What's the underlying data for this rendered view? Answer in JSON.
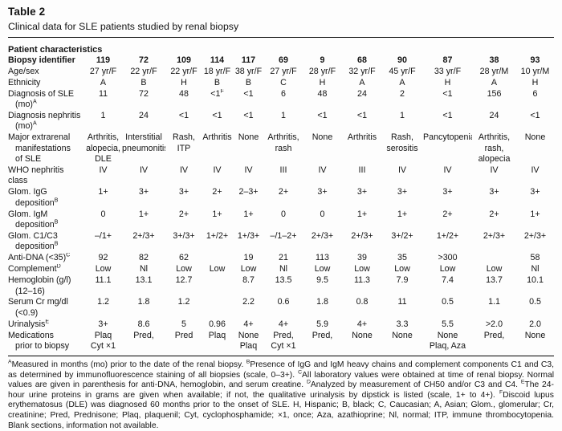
{
  "title": "Table 2",
  "subtitle": "Clinical data for SLE patients studied by renal biopsy",
  "table": {
    "section_header": "Patient characteristics",
    "id_row_label": "Biopsy identifier",
    "columns": [
      "119",
      "72",
      "109",
      "114",
      "117",
      "69",
      "9",
      "68",
      "90",
      "87",
      "38",
      "93"
    ],
    "rows": [
      {
        "label_lines": [
          "Age/sex"
        ],
        "values": [
          "27 yr/F",
          "22 yr/F",
          "22 yr/F",
          "18 yr/F",
          "38 yr/F",
          "27 yr/F",
          "28 yr/F",
          "32 yr/F",
          "45 yr/F",
          "33 yr/F",
          "28 yr/M",
          "10 yr/M"
        ]
      },
      {
        "label_lines": [
          "Ethnicity"
        ],
        "values": [
          "A",
          "B",
          "H",
          "B",
          "B",
          "C",
          "H",
          "A",
          "A",
          "H",
          "A",
          "H"
        ]
      },
      {
        "label_lines": [
          "Diagnosis of SLE",
          "(mo){A}"
        ],
        "values": [
          "11",
          "72",
          "48",
          "<1{F}",
          "<1",
          "6",
          "48",
          "24",
          "2",
          "<1",
          "156",
          "6"
        ]
      },
      {
        "label_lines": [
          "Diagnosis nephritis",
          "(mo){A}"
        ],
        "values": [
          "1",
          "24",
          "<1",
          "<1",
          "<1",
          "1",
          "<1",
          "<1",
          "1",
          "<1",
          "24",
          "<1"
        ]
      },
      {
        "label_lines": [
          "Major extrarenal",
          "manifestations",
          "of SLE"
        ],
        "values": [
          [
            "Arthritis,",
            "alopecia,",
            "DLE"
          ],
          [
            "Interstitial",
            "pneumonitis"
          ],
          [
            "Rash,",
            "ITP"
          ],
          "Arthritis",
          "None",
          [
            "Arthritis,",
            "rash"
          ],
          "None",
          "Arthritis",
          [
            "Rash,",
            "serositis"
          ],
          "Pancytopenia",
          [
            "Arthritis,",
            "rash,",
            "alopecia"
          ],
          "None"
        ]
      },
      {
        "label_lines": [
          "WHO nephritis class"
        ],
        "values": [
          "IV",
          "IV",
          "IV",
          "IV",
          "IV",
          "III",
          "IV",
          "III",
          "IV",
          "IV",
          "IV",
          "IV"
        ]
      },
      {
        "label_lines": [
          "Glom. IgG",
          "deposition{B}"
        ],
        "values": [
          "1+",
          "3+",
          "3+",
          "2+",
          "2–3+",
          "2+",
          "3+",
          "3+",
          "3+",
          "3+",
          "3+",
          "3+"
        ]
      },
      {
        "label_lines": [
          "Glom. IgM",
          "deposition{B}"
        ],
        "values": [
          "0",
          "1+",
          "2+",
          "1+",
          "1+",
          "0",
          "0",
          "1+",
          "1+",
          "2+",
          "2+",
          "1+"
        ]
      },
      {
        "label_lines": [
          "Glom. C1/C3",
          "deposition{B}"
        ],
        "values": [
          "–/1+",
          "2+/3+",
          "3+/3+",
          "1+/2+",
          "1+/3+",
          "–/1–2+",
          "2+/3+",
          "2+/3+",
          "3+/2+",
          "1+/2+",
          "2+/3+",
          "2+/3+"
        ]
      },
      {
        "label_lines": [
          "Anti-DNA (<35){C}"
        ],
        "values": [
          "92",
          "82",
          "62",
          "",
          "19",
          "21",
          "113",
          "39",
          "35",
          ">300",
          "",
          "58"
        ]
      },
      {
        "label_lines": [
          "Complement{D}"
        ],
        "values": [
          "Low",
          "Nl",
          "Low",
          "Low",
          "Low",
          "Nl",
          "Low",
          "Low",
          "Low",
          "Low",
          "Low",
          "Nl"
        ]
      },
      {
        "label_lines": [
          "Hemoglobin (g/l)",
          "(12–16)"
        ],
        "values": [
          "11.1",
          "13.1",
          "12.7",
          "",
          "8.7",
          "13.5",
          "9.5",
          "11.3",
          "7.9",
          "7.4",
          "13.7",
          "10.1"
        ]
      },
      {
        "label_lines": [
          "Serum Cr mg/dl",
          "(<0.9)"
        ],
        "values": [
          "1.2",
          "1.8",
          "1.2",
          "",
          "2.2",
          "0.6",
          "1.8",
          "0.8",
          "11",
          "0.5",
          "1.1",
          "0.5"
        ]
      },
      {
        "label_lines": [
          "Urinalysis{E}"
        ],
        "values": [
          "3+",
          "8.6",
          "5",
          "0.96",
          "4+",
          "4+",
          "5.9",
          "4+",
          "3.3",
          "5.5",
          ">2.0",
          "2.0"
        ]
      },
      {
        "label_lines": [
          "Medications",
          "prior to biopsy"
        ],
        "values": [
          [
            "Plaq",
            "Cyt ×1"
          ],
          "Pred,",
          "Pred",
          "Plaq",
          [
            "None",
            "Plaq"
          ],
          [
            "Pred,",
            "Cyt ×1"
          ],
          "Pred,",
          "None",
          "None",
          [
            "None",
            "Plaq, Aza"
          ],
          "Pred,",
          "None"
        ]
      }
    ]
  },
  "footnotes": "{A}Measured in months (mo) prior to the date of the renal biopsy. {B}Presence of IgG and IgM heavy chains and complement components C1 and C3, as determined by immunofluorescence staining of all biopsies (scale, 0–3+). {C}All laboratory values were obtained at time of renal biopsy. Normal values are given in parenthesis for anti-DNA, hemoglobin, and serum creatine. {D}Analyzed by measurement of CH50 and/or C3 and C4. {E}The 24-hour urine proteins in grams are given when available; if not, the qualitative urinalysis by dipstick is listed (scale, 1+ to 4+). {F}Discoid lupus erythematosus (DLE) was diagnosed 60 months prior to the onset of SLE. H, Hispanic; B, black; C, Caucasian; A, Asian; Glom., glomerular; Cr, creatinine; Pred, Prednisone; Plaq, plaquenil; Cyt, cyclophosphamide; ×1, once; Aza, azathioprine; Nl, normal; ITP, immune thrombocytopenia. Blank sections, information not available."
}
